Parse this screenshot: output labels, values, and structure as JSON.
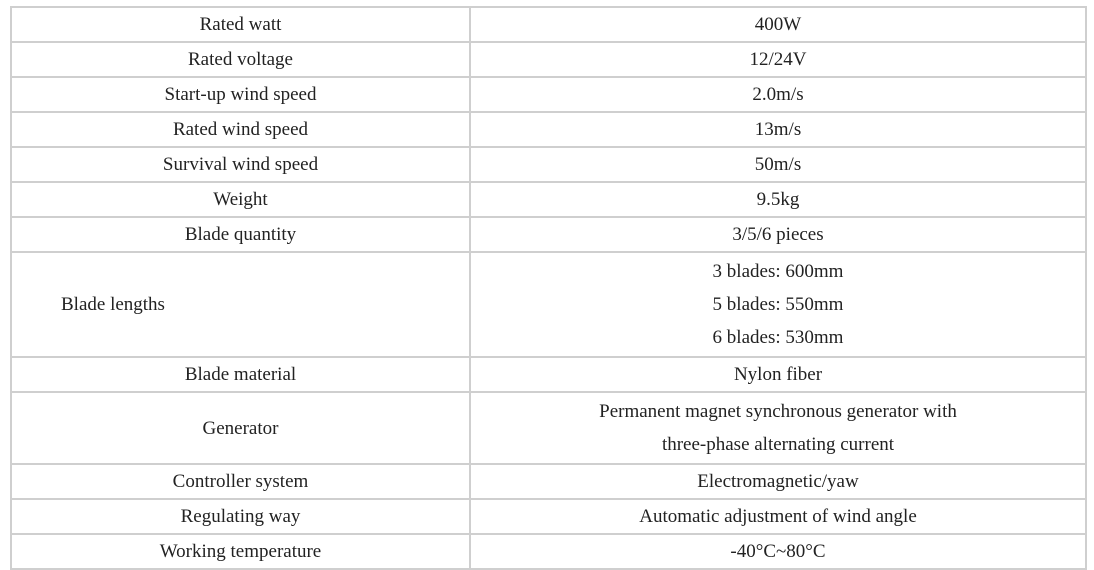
{
  "specs": [
    {
      "label": "Rated watt",
      "value": [
        "400W"
      ]
    },
    {
      "label": "Rated voltage",
      "value": [
        "12/24V"
      ]
    },
    {
      "label": "Start-up wind speed",
      "value": [
        "2.0m/s"
      ]
    },
    {
      "label": "Rated wind speed",
      "value": [
        "13m/s"
      ]
    },
    {
      "label": "Survival wind speed",
      "value": [
        "50m/s"
      ]
    },
    {
      "label": "Weight",
      "value": [
        "9.5kg"
      ]
    },
    {
      "label": "Blade quantity",
      "value": [
        "3/5/6 pieces"
      ]
    },
    {
      "label": "Blade lengths",
      "value": [
        "3 blades: 600mm",
        "5 blades: 550mm",
        "6 blades: 530mm"
      ]
    },
    {
      "label": "Blade material",
      "value": [
        "Nylon fiber"
      ]
    },
    {
      "label": "Generator",
      "value": [
        "Permanent magnet synchronous generator with",
        "three-phase alternating current"
      ]
    },
    {
      "label": "Controller system",
      "value": [
        "Electromagnetic/yaw"
      ]
    },
    {
      "label": "Regulating way",
      "value": [
        "Automatic adjustment of wind angle"
      ]
    },
    {
      "label": "Working temperature",
      "value": [
        "-40°C~80°C"
      ]
    }
  ]
}
